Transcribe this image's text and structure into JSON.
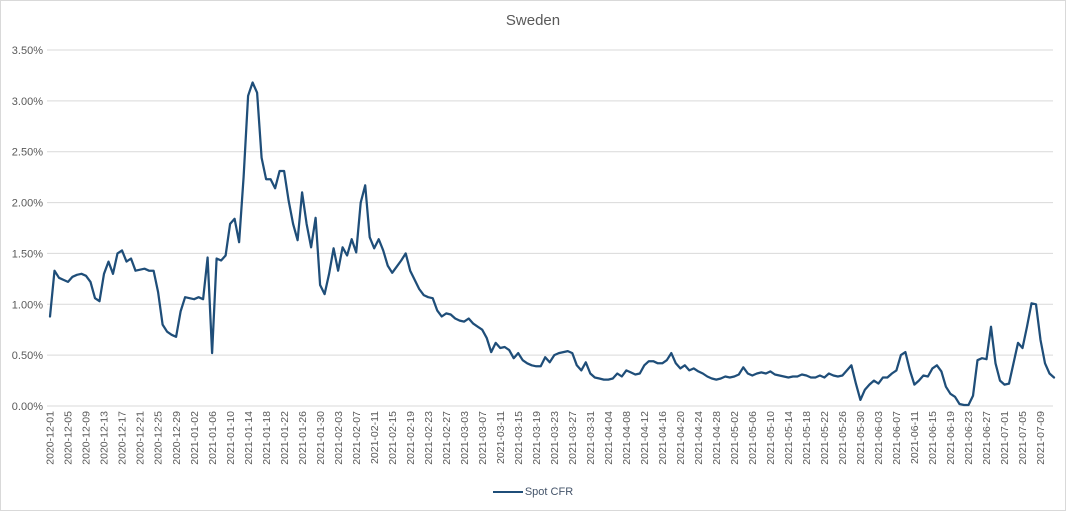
{
  "chart": {
    "title": "Sweden",
    "legend": {
      "label": "Spot CFR"
    }
  },
  "colors": {
    "line": "#1F4E79",
    "grid": "#D9D9D9",
    "axis_text": "#595959",
    "title_text": "#595959",
    "legend_text": "#44546A",
    "border": "#D9D9D9",
    "background": "#FFFFFF"
  },
  "chart_data": {
    "type": "line",
    "title": "Sweden",
    "xlabel": "",
    "ylabel": "",
    "y_unit": "%",
    "ylim": [
      0,
      3.5
    ],
    "y_ticks": [
      "0.00%",
      "0.50%",
      "1.00%",
      "1.50%",
      "2.00%",
      "2.50%",
      "3.00%",
      "3.50%"
    ],
    "grid": true,
    "legend_position": "bottom",
    "points_per_tick": 4,
    "x_start": "2020-12-01",
    "x_tick_labels": [
      "2020-12-01",
      "2020-12-05",
      "2020-12-09",
      "2020-12-13",
      "2020-12-17",
      "2020-12-21",
      "2020-12-25",
      "2020-12-29",
      "2021-01-02",
      "2021-01-06",
      "2021-01-10",
      "2021-01-14",
      "2021-01-18",
      "2021-01-22",
      "2021-01-26",
      "2021-01-30",
      "2021-02-03",
      "2021-02-07",
      "2021-02-11",
      "2021-02-15",
      "2021-02-19",
      "2021-02-23",
      "2021-02-27",
      "2021-03-03",
      "2021-03-07",
      "2021-03-11",
      "2021-03-15",
      "2021-03-19",
      "2021-03-23",
      "2021-03-27",
      "2021-03-31",
      "2021-04-04",
      "2021-04-08",
      "2021-04-12",
      "2021-04-16",
      "2021-04-20",
      "2021-04-24",
      "2021-04-28",
      "2021-05-02",
      "2021-05-06",
      "2021-05-10",
      "2021-05-14",
      "2021-05-18",
      "2021-05-22",
      "2021-05-26",
      "2021-05-30",
      "2021-06-03",
      "2021-06-07",
      "2021-06-11",
      "2021-06-15",
      "2021-06-19",
      "2021-06-23",
      "2021-06-27",
      "2021-07-01",
      "2021-07-05",
      "2021-07-09"
    ],
    "series": [
      {
        "name": "Spot CFR",
        "color": "#1F4E79",
        "values": [
          0.88,
          1.33,
          1.26,
          1.24,
          1.22,
          1.27,
          1.29,
          1.3,
          1.28,
          1.22,
          1.06,
          1.03,
          1.3,
          1.42,
          1.3,
          1.5,
          1.53,
          1.42,
          1.45,
          1.33,
          1.34,
          1.35,
          1.33,
          1.33,
          1.12,
          0.8,
          0.73,
          0.7,
          0.68,
          0.93,
          1.07,
          1.06,
          1.05,
          1.07,
          1.05,
          1.46,
          0.52,
          1.45,
          1.43,
          1.48,
          1.79,
          1.84,
          1.61,
          2.25,
          3.05,
          3.18,
          3.08,
          2.44,
          2.23,
          2.23,
          2.14,
          2.31,
          2.31,
          2.02,
          1.79,
          1.63,
          2.1,
          1.79,
          1.56,
          1.85,
          1.19,
          1.1,
          1.3,
          1.55,
          1.33,
          1.56,
          1.48,
          1.64,
          1.51,
          2.0,
          2.17,
          1.66,
          1.55,
          1.64,
          1.53,
          1.38,
          1.31,
          1.37,
          1.43,
          1.5,
          1.33,
          1.24,
          1.15,
          1.09,
          1.07,
          1.06,
          0.94,
          0.88,
          0.91,
          0.9,
          0.86,
          0.84,
          0.83,
          0.86,
          0.81,
          0.78,
          0.75,
          0.67,
          0.53,
          0.62,
          0.57,
          0.58,
          0.55,
          0.47,
          0.52,
          0.45,
          0.42,
          0.4,
          0.39,
          0.39,
          0.48,
          0.43,
          0.5,
          0.52,
          0.53,
          0.54,
          0.52,
          0.4,
          0.35,
          0.43,
          0.32,
          0.28,
          0.27,
          0.26,
          0.26,
          0.27,
          0.32,
          0.29,
          0.35,
          0.33,
          0.31,
          0.32,
          0.4,
          0.44,
          0.44,
          0.42,
          0.42,
          0.45,
          0.52,
          0.42,
          0.37,
          0.4,
          0.35,
          0.37,
          0.34,
          0.32,
          0.29,
          0.27,
          0.26,
          0.27,
          0.29,
          0.28,
          0.29,
          0.31,
          0.38,
          0.32,
          0.3,
          0.32,
          0.33,
          0.32,
          0.34,
          0.31,
          0.3,
          0.29,
          0.28,
          0.29,
          0.29,
          0.31,
          0.3,
          0.28,
          0.28,
          0.3,
          0.28,
          0.32,
          0.3,
          0.29,
          0.3,
          0.35,
          0.4,
          0.22,
          0.06,
          0.16,
          0.21,
          0.25,
          0.22,
          0.28,
          0.28,
          0.32,
          0.35,
          0.5,
          0.53,
          0.35,
          0.21,
          0.25,
          0.3,
          0.29,
          0.37,
          0.4,
          0.34,
          0.19,
          0.12,
          0.09,
          0.02,
          0.01,
          0.01,
          0.1,
          0.45,
          0.47,
          0.46,
          0.78,
          0.42,
          0.25,
          0.21,
          0.22,
          0.42,
          0.62,
          0.57,
          0.78,
          1.01,
          1.0,
          0.65,
          0.42,
          0.32,
          0.28
        ]
      }
    ]
  }
}
